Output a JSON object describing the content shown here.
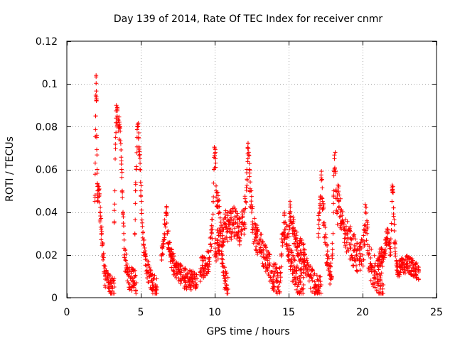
{
  "chart_data": {
    "type": "scatter",
    "title": "Day 139 of 2014, Rate Of TEC Index for receiver cnmr",
    "xlabel": "GPS time / hours",
    "ylabel": "ROTI / TECUs",
    "xlim": [
      0,
      25
    ],
    "ylim": [
      0,
      0.12
    ],
    "xticks": [
      0,
      5,
      10,
      15,
      20,
      25
    ],
    "yticks": [
      0,
      0.02,
      0.04,
      0.06,
      0.08,
      0.1,
      0.12
    ],
    "xtick_labels": [
      "0",
      "5",
      "10",
      "15",
      "20",
      "25"
    ],
    "ytick_labels": [
      "0",
      "0.02",
      "0.04",
      "0.06",
      "0.08",
      "0.1",
      "0.12"
    ],
    "grid": true,
    "marker": "+",
    "marker_color": "#ff0000",
    "series": [
      {
        "name": "ROTI",
        "segments": [
          {
            "points": [
              [
                1.9,
                0.045
              ],
              [
                1.92,
                0.063
              ],
              [
                1.95,
                0.085
              ],
              [
                1.98,
                0.104
              ],
              [
                2.0,
                0.094
              ],
              [
                2.02,
                0.075
              ],
              [
                2.05,
                0.06
              ],
              [
                2.08,
                0.05
              ],
              [
                2.1,
                0.045
              ],
              [
                2.15,
                0.052
              ],
              [
                2.2,
                0.048
              ],
              [
                2.25,
                0.04
              ],
              [
                2.3,
                0.033
              ],
              [
                2.35,
                0.03
              ],
              [
                2.4,
                0.025
              ],
              [
                2.45,
                0.02
              ],
              [
                2.5,
                0.015
              ],
              [
                2.55,
                0.012
              ],
              [
                2.6,
                0.01
              ],
              [
                2.7,
                0.008
              ],
              [
                2.8,
                0.007
              ],
              [
                2.9,
                0.006
              ],
              [
                3.0,
                0.005
              ],
              [
                3.1,
                0.005
              ],
              [
                3.2,
                0.005
              ]
            ],
            "spread": 0.005
          },
          {
            "points": [
              [
                3.2,
                0.035
              ],
              [
                3.25,
                0.05
              ],
              [
                3.3,
                0.075
              ],
              [
                3.35,
                0.09
              ],
              [
                3.4,
                0.085
              ],
              [
                3.5,
                0.078
              ],
              [
                3.6,
                0.08
              ],
              [
                3.65,
                0.072
              ],
              [
                3.7,
                0.06
              ],
              [
                3.75,
                0.05
              ],
              [
                3.8,
                0.04
              ],
              [
                3.85,
                0.03
              ],
              [
                3.9,
                0.02
              ],
              [
                4.0,
                0.015
              ],
              [
                4.1,
                0.012
              ],
              [
                4.2,
                0.01
              ],
              [
                4.3,
                0.009
              ],
              [
                4.4,
                0.008
              ],
              [
                4.5,
                0.008
              ],
              [
                4.6,
                0.007
              ],
              [
                4.7,
                0.007
              ]
            ],
            "spread": 0.006
          },
          {
            "points": [
              [
                4.6,
                0.03
              ],
              [
                4.65,
                0.05
              ],
              [
                4.7,
                0.06
              ],
              [
                4.75,
                0.075
              ],
              [
                4.8,
                0.08
              ],
              [
                4.85,
                0.075
              ],
              [
                4.9,
                0.07
              ],
              [
                4.95,
                0.06
              ],
              [
                5.0,
                0.05
              ],
              [
                5.05,
                0.045
              ],
              [
                5.1,
                0.035
              ],
              [
                5.2,
                0.025
              ],
              [
                5.3,
                0.02
              ],
              [
                5.4,
                0.015
              ],
              [
                5.5,
                0.012
              ],
              [
                5.6,
                0.01
              ],
              [
                5.7,
                0.008
              ],
              [
                5.8,
                0.007
              ],
              [
                5.9,
                0.006
              ],
              [
                6.0,
                0.006
              ],
              [
                6.1,
                0.005
              ]
            ],
            "spread": 0.005
          },
          {
            "points": [
              [
                6.4,
                0.02
              ],
              [
                6.5,
                0.025
              ],
              [
                6.6,
                0.03
              ],
              [
                6.7,
                0.04
              ],
              [
                6.75,
                0.042
              ],
              [
                6.8,
                0.03
              ],
              [
                6.9,
                0.025
              ],
              [
                7.0,
                0.02
              ],
              [
                7.1,
                0.018
              ],
              [
                7.2,
                0.016
              ],
              [
                7.4,
                0.014
              ],
              [
                7.6,
                0.012
              ],
              [
                7.8,
                0.01
              ],
              [
                8.0,
                0.009
              ],
              [
                8.2,
                0.008
              ],
              [
                8.4,
                0.008
              ],
              [
                8.6,
                0.009
              ],
              [
                8.8,
                0.009
              ]
            ],
            "spread": 0.005
          },
          {
            "points": [
              [
                9.0,
                0.012
              ],
              [
                9.2,
                0.014
              ],
              [
                9.4,
                0.016
              ],
              [
                9.6,
                0.018
              ],
              [
                9.8,
                0.03
              ],
              [
                9.9,
                0.045
              ],
              [
                9.95,
                0.06
              ],
              [
                10.0,
                0.07
              ],
              [
                10.05,
                0.065
              ],
              [
                10.1,
                0.05
              ],
              [
                10.2,
                0.045
              ],
              [
                10.3,
                0.04
              ],
              [
                10.4,
                0.03
              ],
              [
                10.5,
                0.02
              ],
              [
                10.6,
                0.012
              ],
              [
                10.7,
                0.008
              ],
              [
                10.8,
                0.006
              ],
              [
                10.9,
                0.004
              ]
            ],
            "spread": 0.006
          },
          {
            "points": [
              [
                10.0,
                0.02
              ],
              [
                10.2,
                0.025
              ],
              [
                10.4,
                0.03
              ],
              [
                10.6,
                0.032
              ],
              [
                10.8,
                0.033
              ],
              [
                11.0,
                0.034
              ],
              [
                11.2,
                0.034
              ],
              [
                11.4,
                0.035
              ],
              [
                11.6,
                0.033
              ],
              [
                11.8,
                0.032
              ],
              [
                12.0,
                0.035
              ],
              [
                12.1,
                0.045
              ],
              [
                12.2,
                0.055
              ],
              [
                12.25,
                0.065
              ],
              [
                12.3,
                0.068
              ],
              [
                12.35,
                0.06
              ],
              [
                12.4,
                0.05
              ],
              [
                12.5,
                0.04
              ],
              [
                12.6,
                0.033
              ],
              [
                12.8,
                0.03
              ]
            ],
            "spread": 0.008
          },
          {
            "points": [
              [
                12.8,
                0.028
              ],
              [
                13.0,
                0.025
              ],
              [
                13.2,
                0.022
              ],
              [
                13.4,
                0.018
              ],
              [
                13.6,
                0.015
              ],
              [
                13.8,
                0.012
              ],
              [
                14.0,
                0.01
              ],
              [
                14.2,
                0.008
              ],
              [
                14.4,
                0.007
              ],
              [
                14.5,
                0.02
              ],
              [
                14.6,
                0.03
              ],
              [
                14.7,
                0.035
              ],
              [
                14.8,
                0.032
              ],
              [
                14.9,
                0.028
              ],
              [
                15.0,
                0.02
              ],
              [
                15.2,
                0.015
              ],
              [
                15.4,
                0.012
              ],
              [
                15.6,
                0.009
              ],
              [
                15.8,
                0.007
              ],
              [
                16.0,
                0.006
              ]
            ],
            "spread": 0.007
          },
          {
            "points": [
              [
                15.0,
                0.03
              ],
              [
                15.1,
                0.04
              ],
              [
                15.2,
                0.035
              ],
              [
                15.4,
                0.03
              ],
              [
                15.5,
                0.028
              ],
              [
                15.6,
                0.025
              ],
              [
                15.8,
                0.022
              ],
              [
                16.0,
                0.02
              ],
              [
                16.2,
                0.015
              ],
              [
                16.4,
                0.01
              ],
              [
                16.6,
                0.008
              ],
              [
                16.8,
                0.005
              ],
              [
                17.0,
                0.005
              ],
              [
                17.2,
                0.006
              ]
            ],
            "spread": 0.006
          },
          {
            "points": [
              [
                17.0,
                0.03
              ],
              [
                17.1,
                0.04
              ],
              [
                17.2,
                0.056
              ],
              [
                17.3,
                0.045
              ],
              [
                17.4,
                0.035
              ],
              [
                17.5,
                0.025
              ],
              [
                17.6,
                0.02
              ],
              [
                17.7,
                0.015
              ],
              [
                17.8,
                0.012
              ],
              [
                17.9,
                0.01
              ],
              [
                18.0,
                0.03
              ],
              [
                18.05,
                0.05
              ],
              [
                18.1,
                0.065
              ],
              [
                18.15,
                0.068
              ],
              [
                18.2,
                0.05
              ],
              [
                18.3,
                0.04
              ]
            ],
            "spread": 0.006
          },
          {
            "points": [
              [
                18.3,
                0.048
              ],
              [
                18.4,
                0.045
              ],
              [
                18.5,
                0.04
              ],
              [
                18.6,
                0.035
              ],
              [
                18.8,
                0.03
              ],
              [
                19.0,
                0.028
              ],
              [
                19.2,
                0.025
              ],
              [
                19.4,
                0.022
              ],
              [
                19.6,
                0.02
              ],
              [
                19.8,
                0.018
              ],
              [
                20.0,
                0.02
              ],
              [
                20.1,
                0.025
              ],
              [
                20.2,
                0.04
              ],
              [
                20.3,
                0.03
              ],
              [
                20.4,
                0.02
              ],
              [
                20.6,
                0.015
              ],
              [
                20.8,
                0.012
              ],
              [
                21.0,
                0.01
              ],
              [
                21.2,
                0.008
              ],
              [
                21.4,
                0.006
              ]
            ],
            "spread": 0.008
          },
          {
            "points": [
              [
                21.0,
                0.015
              ],
              [
                21.2,
                0.02
              ],
              [
                21.4,
                0.018
              ],
              [
                21.5,
                0.022
              ],
              [
                21.6,
                0.028
              ],
              [
                21.7,
                0.03
              ],
              [
                21.8,
                0.025
              ],
              [
                21.9,
                0.02
              ],
              [
                22.0,
                0.05
              ],
              [
                22.05,
                0.052
              ],
              [
                22.1,
                0.038
              ],
              [
                22.2,
                0.025
              ],
              [
                22.3,
                0.015
              ],
              [
                22.4,
                0.012
              ],
              [
                22.6,
                0.015
              ],
              [
                22.8,
                0.014
              ],
              [
                23.0,
                0.016
              ],
              [
                23.2,
                0.015
              ],
              [
                23.4,
                0.014
              ],
              [
                23.6,
                0.013
              ],
              [
                23.8,
                0.012
              ]
            ],
            "spread": 0.004
          }
        ]
      }
    ]
  }
}
